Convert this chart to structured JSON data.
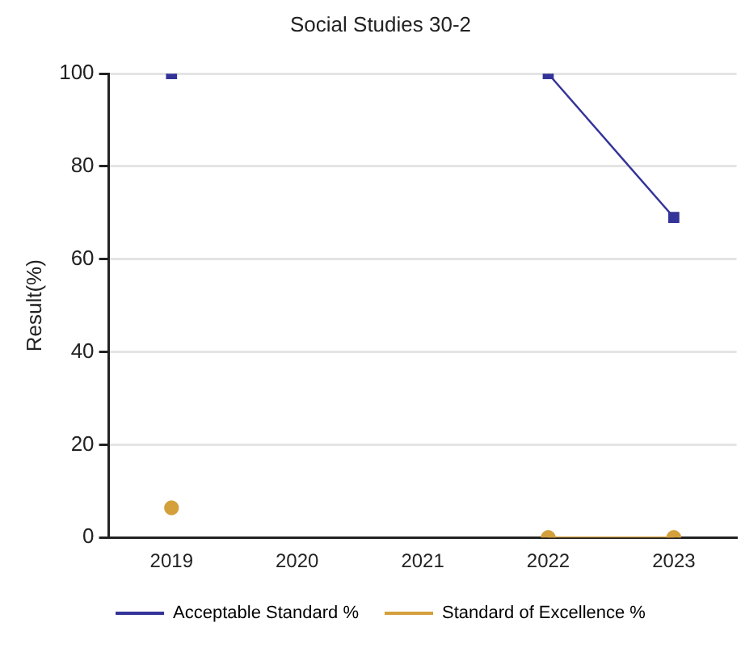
{
  "chart_data": {
    "type": "line",
    "title": "Social Studies 30-2",
    "ylabel": "Result(%)",
    "categories": [
      "2019",
      "2020",
      "2021",
      "2022",
      "2023"
    ],
    "series": [
      {
        "name": "Acceptable Standard %",
        "color": "#333399",
        "marker": "square",
        "values": [
          100,
          null,
          null,
          100,
          69
        ]
      },
      {
        "name": "Standard of Excellence %",
        "color": "#d4a03c",
        "marker": "circle",
        "values": [
          6.4,
          null,
          null,
          0,
          0
        ]
      }
    ],
    "ylim": [
      0,
      100
    ],
    "yticks": [
      0,
      20,
      40,
      60,
      80,
      100
    ],
    "grid": "y",
    "legend": "bottom"
  }
}
